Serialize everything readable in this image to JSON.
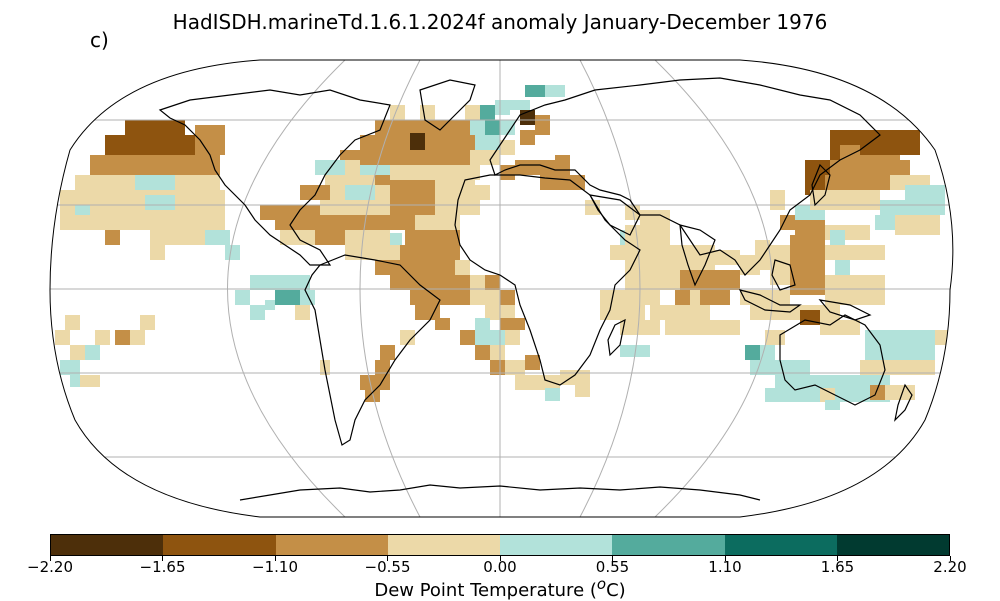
{
  "title": "HadISDH.marineTd.1.6.1.2024f anomaly January-December 1976",
  "panel_label": "c)",
  "colorbar": {
    "label": "Dew Point Temperature (°C)",
    "label_parts": {
      "prefix": "Dew Point Temperature (",
      "sup": "o",
      "suffix": "C)"
    },
    "ticks": [
      "−2.20",
      "−1.65",
      "−1.10",
      "−0.55",
      "0.00",
      "0.55",
      "1.10",
      "1.65",
      "2.20"
    ],
    "colors": [
      "#4d2f0a",
      "#8e540f",
      "#c48f47",
      "#ecd9a8",
      "#b2e2da",
      "#54ab9d",
      "#0c6c5f",
      "#013a30"
    ]
  },
  "map": {
    "projection": "robinson",
    "land_color": "#ffffff",
    "coast_color": "#000000",
    "grid_color": "#b0b0b0"
  }
}
